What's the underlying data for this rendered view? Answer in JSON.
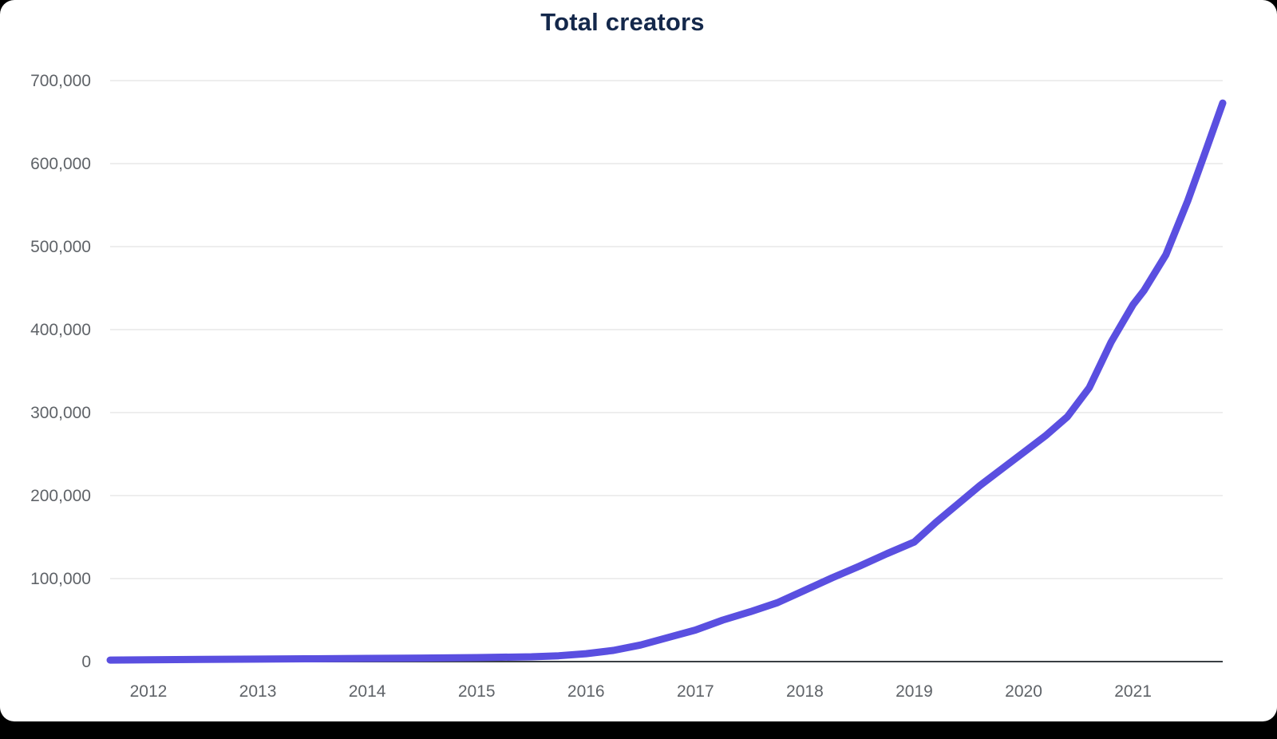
{
  "page": {
    "background_color": "#000000",
    "card_color": "#ffffff"
  },
  "chart_data": {
    "type": "line",
    "title": "Total creators",
    "xlabel": "",
    "ylabel": "",
    "xlim": [
      2011.65,
      2021.82
    ],
    "ylim": [
      0,
      700000
    ],
    "grid": "horizontal",
    "legend": "none",
    "title_color": "#14284b",
    "axis_label_color": "#5f6368",
    "gridline_color": "#dcdcdc",
    "axis_line_color": "#3a3f44",
    "x_ticks": [
      2012,
      2013,
      2014,
      2015,
      2016,
      2017,
      2018,
      2019,
      2020,
      2021
    ],
    "y_ticks": [
      0,
      100000,
      200000,
      300000,
      400000,
      500000,
      600000,
      700000
    ],
    "y_tick_labels": [
      "0",
      "100,000",
      "200,000",
      "300,000",
      "400,000",
      "500,000",
      "600,000",
      "700,000"
    ],
    "series": [
      {
        "name": "Total creators",
        "color": "#5a4fe0",
        "x": [
          2011.65,
          2012.0,
          2012.5,
          2013.0,
          2013.5,
          2014.0,
          2014.5,
          2015.0,
          2015.5,
          2015.75,
          2016.0,
          2016.25,
          2016.5,
          2016.75,
          2017.0,
          2017.25,
          2017.5,
          2017.75,
          2018.0,
          2018.25,
          2018.5,
          2018.75,
          2019.0,
          2019.2,
          2019.4,
          2019.6,
          2019.8,
          2020.0,
          2020.2,
          2020.4,
          2020.6,
          2020.8,
          2021.0,
          2021.1,
          2021.3,
          2021.5,
          2021.65,
          2021.82
        ],
        "values": [
          1800,
          2200,
          2600,
          3000,
          3400,
          3800,
          4200,
          4800,
          5800,
          7000,
          9500,
          13500,
          20000,
          29000,
          38000,
          50000,
          60000,
          71000,
          86000,
          101000,
          115000,
          130000,
          144000,
          168000,
          190000,
          212000,
          232000,
          252000,
          272000,
          295000,
          330000,
          385000,
          430000,
          447000,
          490000,
          555000,
          610000,
          673000
        ]
      }
    ]
  }
}
